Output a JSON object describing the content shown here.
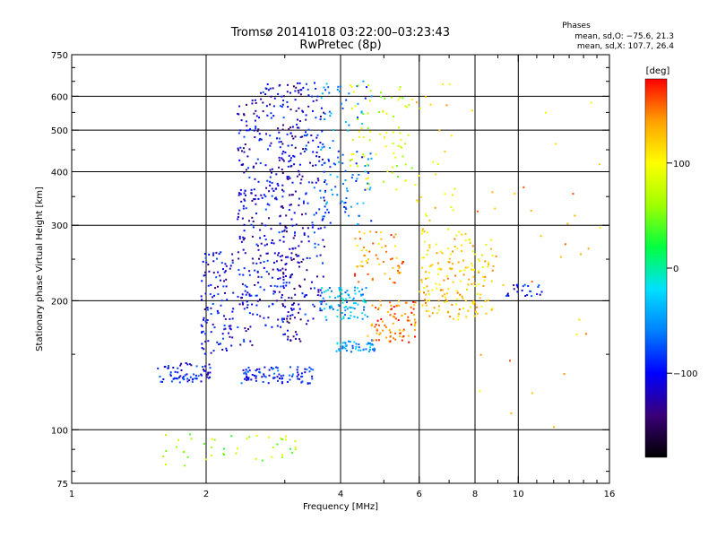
{
  "header": {
    "title_line1": "Tromsø 20141018 03:22:00–03:23:43",
    "title_line2": "RwPretec (8p)"
  },
  "stats": {
    "heading": "Phases",
    "o_mode": "mean, sd,O: −75.6, 21.3",
    "x_mode": "mean, sd,X: 107.7, 26.4"
  },
  "chart_data": {
    "type": "scatter",
    "title": "Tromsø 20141018 03:22:00–03:23:43",
    "subtitle": "RwPretec (8p)",
    "xlabel": "Frequency [MHz]",
    "ylabel": "Stationary phase Virtual Height [km]",
    "xscale": "log",
    "yscale": "log",
    "xlim": [
      1,
      16
    ],
    "ylim": [
      75,
      750
    ],
    "xticks": [
      1,
      2,
      4,
      6,
      8,
      10,
      16
    ],
    "yticks": [
      75,
      100,
      200,
      300,
      400,
      500,
      600,
      750
    ],
    "grid_x": [
      2,
      4,
      6,
      8,
      10
    ],
    "grid_y": [
      100,
      200,
      300,
      400,
      500,
      600
    ],
    "colorbar": {
      "label": "[deg]",
      "ticks": [
        100,
        0,
        -100
      ],
      "range": [
        -180,
        180
      ],
      "colormap": [
        "#000000",
        "#3a0078",
        "#0000ff",
        "#0080ff",
        "#00e0ff",
        "#00ff40",
        "#a0ff00",
        "#ffff00",
        "#ffa000",
        "#ff0000"
      ]
    },
    "clusters": [
      {
        "f_min": 1.55,
        "f_max": 2.05,
        "h_min": 128,
        "h_max": 143,
        "phase": -100,
        "n": 70
      },
      {
        "f_min": 1.95,
        "f_max": 2.3,
        "h_min": 150,
        "h_max": 260,
        "phase": -105,
        "n": 110
      },
      {
        "f_min": 2.35,
        "f_max": 2.65,
        "h_min": 155,
        "h_max": 590,
        "phase": -110,
        "n": 170
      },
      {
        "f_min": 2.65,
        "f_max": 3.0,
        "h_min": 170,
        "h_max": 640,
        "phase": -105,
        "n": 150
      },
      {
        "f_min": 2.95,
        "f_max": 3.3,
        "h_min": 160,
        "h_max": 650,
        "phase": -120,
        "n": 190
      },
      {
        "f_min": 3.3,
        "f_max": 3.7,
        "h_min": 175,
        "h_max": 650,
        "phase": -100,
        "n": 120
      },
      {
        "f_min": 2.4,
        "f_max": 3.5,
        "h_min": 128,
        "h_max": 140,
        "phase": -90,
        "n": 90
      },
      {
        "f_min": 3.6,
        "f_max": 4.7,
        "h_min": 300,
        "h_max": 650,
        "phase": -60,
        "n": 110
      },
      {
        "f_min": 4.2,
        "f_max": 5.8,
        "h_min": 360,
        "h_max": 640,
        "phase": 80,
        "n": 80
      },
      {
        "f_min": 3.6,
        "f_max": 4.6,
        "h_min": 180,
        "h_max": 215,
        "phase": -40,
        "n": 90
      },
      {
        "f_min": 3.9,
        "f_max": 4.8,
        "h_min": 152,
        "h_max": 162,
        "phase": -50,
        "n": 50
      },
      {
        "f_min": 4.6,
        "f_max": 5.9,
        "h_min": 160,
        "h_max": 200,
        "phase": 150,
        "n": 90
      },
      {
        "f_min": 4.3,
        "f_max": 5.6,
        "h_min": 220,
        "h_max": 290,
        "phase": 140,
        "n": 60
      },
      {
        "f_min": 6.0,
        "f_max": 8.8,
        "h_min": 180,
        "h_max": 290,
        "phase": 120,
        "n": 170
      },
      {
        "f_min": 5.8,
        "f_max": 7.5,
        "h_min": 240,
        "h_max": 660,
        "phase": 110,
        "n": 40
      },
      {
        "f_min": 9.3,
        "f_max": 11.3,
        "h_min": 205,
        "h_max": 218,
        "phase": -100,
        "n": 25
      },
      {
        "f_min": 1.6,
        "f_max": 3.3,
        "h_min": 82,
        "h_max": 98,
        "phase": 60,
        "n": 45
      },
      {
        "f_min": 7.8,
        "f_max": 15.5,
        "h_min": 100,
        "h_max": 600,
        "phase": 130,
        "n": 35
      }
    ]
  }
}
